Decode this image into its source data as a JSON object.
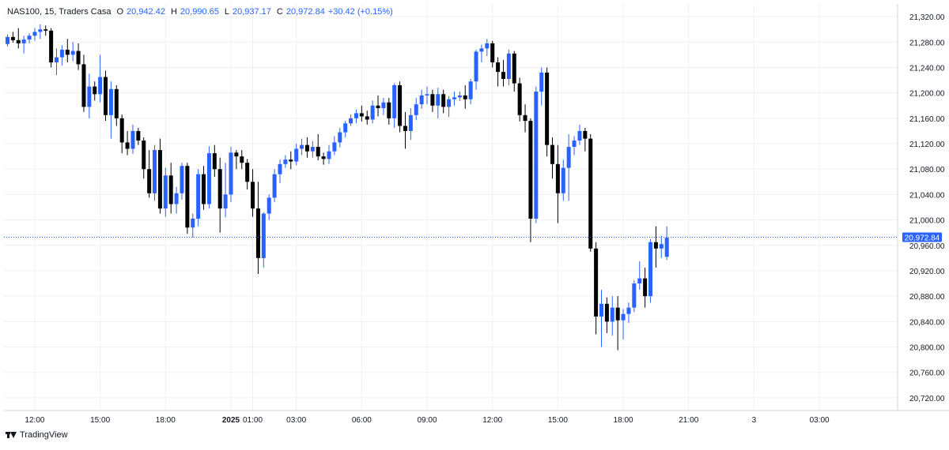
{
  "legend": {
    "symbol": "NAS100, 15, Traders Casa",
    "o_label": "O",
    "o": "20,942.42",
    "h_label": "H",
    "h": "20,990.65",
    "l_label": "L",
    "l": "20,937.17",
    "c_label": "C",
    "c": "20,972.84",
    "change": "+30.42 (+0.15%)"
  },
  "brand": {
    "name": "TradingView",
    "icon": "tradingview-logo-icon"
  },
  "colors": {
    "up": "#2962ff",
    "down": "#000000",
    "grid": "#eef0f3",
    "axis_text": "#131722",
    "price_line": "#2962ff",
    "price_label_bg": "#2962ff"
  },
  "chart_data": {
    "type": "candlestick",
    "symbol": "NAS100",
    "interval": "15",
    "title": "NAS100, 15, Traders Casa",
    "ylim": [
      20700,
      21340
    ],
    "y_ticks": [
      21320,
      21280,
      21240,
      21200,
      21160,
      21120,
      21080,
      21040,
      21000,
      20960,
      20920,
      20880,
      20840,
      20800,
      20760,
      20720
    ],
    "y_tick_labels": [
      "21,320.00",
      "21,280.00",
      "21,240.00",
      "21,200.00",
      "21,160.00",
      "21,120.00",
      "21,080.00",
      "21,040.00",
      "21,000.00",
      "20,960.00",
      "20,920.00",
      "20,880.00",
      "20,840.00",
      "20,800.00",
      "20,760.00",
      "20,720.00"
    ],
    "x_ticks": [
      {
        "label": "12:00",
        "i": 5,
        "bold": false
      },
      {
        "label": "15:00",
        "i": 17,
        "bold": false
      },
      {
        "label": "18:00",
        "i": 29,
        "bold": false
      },
      {
        "label": "2025",
        "i": 41,
        "bold": true
      },
      {
        "label": "01:00",
        "i": 45,
        "bold": false
      },
      {
        "label": "03:00",
        "i": 53,
        "bold": false
      },
      {
        "label": "06:00",
        "i": 65,
        "bold": false
      },
      {
        "label": "09:00",
        "i": 77,
        "bold": false
      },
      {
        "label": "12:00",
        "i": 89,
        "bold": false
      },
      {
        "label": "15:00",
        "i": 101,
        "bold": false
      },
      {
        "label": "18:00",
        "i": 113,
        "bold": false
      },
      {
        "label": "21:00",
        "i": 125,
        "bold": false
      },
      {
        "label": "3",
        "i": 137,
        "bold": false
      },
      {
        "label": "03:00",
        "i": 149,
        "bold": false
      }
    ],
    "last_price": 20972.84,
    "last_price_label": "20,972.84",
    "grid": true,
    "candles": [
      [
        21277,
        21292,
        21273,
        21288
      ],
      [
        21288,
        21296,
        21279,
        21283
      ],
      [
        21283,
        21302,
        21270,
        21278
      ],
      [
        21278,
        21290,
        21262,
        21284
      ],
      [
        21284,
        21294,
        21278,
        21290
      ],
      [
        21290,
        21302,
        21282,
        21296
      ],
      [
        21296,
        21308,
        21285,
        21300
      ],
      [
        21300,
        21306,
        21290,
        21298
      ],
      [
        21298,
        21302,
        21240,
        21248
      ],
      [
        21248,
        21270,
        21228,
        21256
      ],
      [
        21256,
        21275,
        21243,
        21268
      ],
      [
        21268,
        21285,
        21248,
        21260
      ],
      [
        21260,
        21280,
        21250,
        21266
      ],
      [
        21266,
        21278,
        21236,
        21245
      ],
      [
        21245,
        21260,
        21170,
        21178
      ],
      [
        21178,
        21230,
        21160,
        21210
      ],
      [
        21210,
        21218,
        21188,
        21198
      ],
      [
        21198,
        21260,
        21185,
        21225
      ],
      [
        21225,
        21235,
        21156,
        21165
      ],
      [
        21165,
        21218,
        21128,
        21206
      ],
      [
        21206,
        21212,
        21148,
        21160
      ],
      [
        21160,
        21166,
        21105,
        21122
      ],
      [
        21122,
        21140,
        21102,
        21112
      ],
      [
        21112,
        21150,
        21104,
        21140
      ],
      [
        21140,
        21145,
        21118,
        21125
      ],
      [
        21125,
        21130,
        21065,
        21080
      ],
      [
        21080,
        21110,
        21035,
        21042
      ],
      [
        21042,
        21118,
        21030,
        21110
      ],
      [
        21110,
        21128,
        21010,
        21018
      ],
      [
        21018,
        21082,
        21005,
        21070
      ],
      [
        21070,
        21090,
        21010,
        21025
      ],
      [
        21025,
        21052,
        21010,
        21042
      ],
      [
        21042,
        21090,
        21032,
        21085
      ],
      [
        21085,
        21090,
        20978,
        20988
      ],
      [
        20988,
        21010,
        20972,
        21002
      ],
      [
        21002,
        21080,
        20990,
        21072
      ],
      [
        21072,
        21085,
        21016,
        21025
      ],
      [
        21025,
        21116,
        21018,
        21105
      ],
      [
        21105,
        21118,
        21068,
        21080
      ],
      [
        21080,
        21098,
        20980,
        21018
      ],
      [
        21018,
        21090,
        21004,
        21040
      ],
      [
        21040,
        21115,
        21028,
        21106
      ],
      [
        21106,
        21110,
        21080,
        21100
      ],
      [
        21100,
        21110,
        21080,
        21090
      ],
      [
        21090,
        21096,
        21048,
        21060
      ],
      [
        21060,
        21080,
        21005,
        21018
      ],
      [
        21018,
        21060,
        20915,
        20940
      ],
      [
        20940,
        21012,
        20925,
        21010
      ],
      [
        21010,
        21040,
        21000,
        21035
      ],
      [
        21035,
        21080,
        21028,
        21072
      ],
      [
        21072,
        21095,
        21058,
        21088
      ],
      [
        21088,
        21102,
        21082,
        21095
      ],
      [
        21095,
        21108,
        21080,
        21092
      ],
      [
        21092,
        21120,
        21086,
        21112
      ],
      [
        21112,
        21128,
        21102,
        21118
      ],
      [
        21118,
        21130,
        21098,
        21108
      ],
      [
        21108,
        21124,
        21098,
        21115
      ],
      [
        21115,
        21135,
        21094,
        21100
      ],
      [
        21100,
        21106,
        21087,
        21096
      ],
      [
        21096,
        21118,
        21088,
        21108
      ],
      [
        21108,
        21132,
        21102,
        21122
      ],
      [
        21122,
        21145,
        21114,
        21138
      ],
      [
        21138,
        21156,
        21130,
        21152
      ],
      [
        21152,
        21166,
        21148,
        21160
      ],
      [
        21160,
        21174,
        21152,
        21168
      ],
      [
        21168,
        21180,
        21155,
        21163
      ],
      [
        21163,
        21172,
        21150,
        21158
      ],
      [
        21158,
        21188,
        21152,
        21180
      ],
      [
        21180,
        21196,
        21163,
        21176
      ],
      [
        21176,
        21192,
        21165,
        21185
      ],
      [
        21185,
        21192,
        21150,
        21160
      ],
      [
        21160,
        21215,
        21145,
        21212
      ],
      [
        21212,
        21218,
        21138,
        21148
      ],
      [
        21148,
        21170,
        21112,
        21140
      ],
      [
        21140,
        21176,
        21126,
        21165
      ],
      [
        21165,
        21192,
        21157,
        21182
      ],
      [
        21182,
        21205,
        21175,
        21196
      ],
      [
        21196,
        21210,
        21182,
        21198
      ],
      [
        21198,
        21205,
        21170,
        21180
      ],
      [
        21180,
        21208,
        21160,
        21198
      ],
      [
        21198,
        21205,
        21168,
        21178
      ],
      [
        21178,
        21195,
        21162,
        21190
      ],
      [
        21190,
        21202,
        21180,
        21193
      ],
      [
        21193,
        21202,
        21187,
        21196
      ],
      [
        21196,
        21212,
        21175,
        21190
      ],
      [
        21190,
        21222,
        21182,
        21218
      ],
      [
        21218,
        21268,
        21205,
        21265
      ],
      [
        21265,
        21276,
        21248,
        21270
      ],
      [
        21270,
        21285,
        21258,
        21278
      ],
      [
        21278,
        21282,
        21240,
        21248
      ],
      [
        21248,
        21256,
        21210,
        21233
      ],
      [
        21233,
        21252,
        21210,
        21222
      ],
      [
        21222,
        21268,
        21212,
        21262
      ],
      [
        21262,
        21266,
        21202,
        21215
      ],
      [
        21215,
        21224,
        21155,
        21165
      ],
      [
        21165,
        21182,
        21138,
        21156
      ],
      [
        21156,
        21160,
        20965,
        21002
      ],
      [
        21002,
        21210,
        20995,
        21202
      ],
      [
        21202,
        21240,
        21180,
        21232
      ],
      [
        21232,
        21240,
        21100,
        21118
      ],
      [
        21118,
        21130,
        21065,
        21088
      ],
      [
        21088,
        21118,
        20995,
        21042
      ],
      [
        21042,
        21095,
        21030,
        21082
      ],
      [
        21082,
        21135,
        21030,
        21115
      ],
      [
        21115,
        21132,
        21102,
        21125
      ],
      [
        21125,
        21150,
        21118,
        21140
      ],
      [
        21140,
        21145,
        21108,
        21128
      ],
      [
        21128,
        21135,
        20950,
        20955
      ],
      [
        20955,
        20965,
        20820,
        20848
      ],
      [
        20848,
        20890,
        20800,
        20868
      ],
      [
        20868,
        20878,
        20822,
        20840
      ],
      [
        20840,
        20880,
        20818,
        20862
      ],
      [
        20862,
        20880,
        20795,
        20842
      ],
      [
        20842,
        20860,
        20812,
        20852
      ],
      [
        20852,
        20870,
        20838,
        20862
      ],
      [
        20862,
        20905,
        20855,
        20900
      ],
      [
        20900,
        20935,
        20890,
        20908
      ],
      [
        20908,
        20925,
        20862,
        20880
      ],
      [
        20880,
        20970,
        20870,
        20965
      ],
      [
        20965,
        20990,
        20925,
        20955
      ],
      [
        20955,
        20975,
        20940,
        20962
      ],
      [
        20942,
        20990,
        20937,
        20972
      ]
    ]
  }
}
